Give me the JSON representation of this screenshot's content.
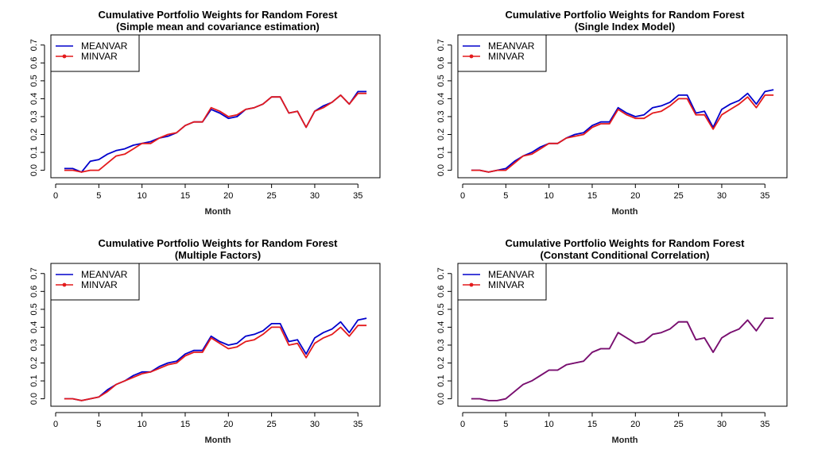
{
  "chart_data": [
    {
      "type": "line",
      "title": "Cumulative Portfolio Weights for Random Forest",
      "subtitle": "(Simple mean and covariance estimation)",
      "xlabel": "Month",
      "ylabel": "",
      "xlim": [
        0,
        37
      ],
      "ylim": [
        0,
        0.7
      ],
      "xticks": [
        0,
        5,
        10,
        15,
        20,
        25,
        30,
        35
      ],
      "yticks": [
        0.0,
        0.1,
        0.2,
        0.3,
        0.4,
        0.5,
        0.6,
        0.7
      ],
      "legend_position": "top-left",
      "x": [
        1,
        2,
        3,
        4,
        5,
        6,
        7,
        8,
        9,
        10,
        11,
        12,
        13,
        14,
        15,
        16,
        17,
        18,
        19,
        20,
        21,
        22,
        23,
        24,
        25,
        26,
        27,
        28,
        29,
        30,
        31,
        32,
        33,
        34,
        35,
        36
      ],
      "series": [
        {
          "name": "MEANVAR",
          "color": "#0000CC",
          "values": [
            0.01,
            0.01,
            -0.01,
            0.05,
            0.06,
            0.09,
            0.11,
            0.12,
            0.14,
            0.15,
            0.16,
            0.18,
            0.19,
            0.21,
            0.25,
            0.27,
            0.27,
            0.34,
            0.32,
            0.29,
            0.3,
            0.34,
            0.35,
            0.37,
            0.41,
            0.41,
            0.32,
            0.33,
            0.24,
            0.33,
            0.36,
            0.38,
            0.42,
            0.37,
            0.44,
            0.44
          ]
        },
        {
          "name": "MINVAR",
          "color": "#E41A1C",
          "values": [
            0.0,
            0.0,
            -0.01,
            0.0,
            0.0,
            0.04,
            0.08,
            0.09,
            0.12,
            0.15,
            0.15,
            0.18,
            0.2,
            0.21,
            0.25,
            0.27,
            0.27,
            0.35,
            0.33,
            0.3,
            0.31,
            0.34,
            0.35,
            0.37,
            0.41,
            0.41,
            0.32,
            0.33,
            0.24,
            0.33,
            0.35,
            0.38,
            0.42,
            0.37,
            0.43,
            0.43
          ]
        }
      ]
    },
    {
      "type": "line",
      "title": "Cumulative Portfolio Weights for Random Forest",
      "subtitle": "(Single Index Model)",
      "xlabel": "Month",
      "ylabel": "",
      "xlim": [
        0,
        37
      ],
      "ylim": [
        0,
        0.7
      ],
      "xticks": [
        0,
        5,
        10,
        15,
        20,
        25,
        30,
        35
      ],
      "yticks": [
        0.0,
        0.1,
        0.2,
        0.3,
        0.4,
        0.5,
        0.6,
        0.7
      ],
      "legend_position": "top-left",
      "x": [
        1,
        2,
        3,
        4,
        5,
        6,
        7,
        8,
        9,
        10,
        11,
        12,
        13,
        14,
        15,
        16,
        17,
        18,
        19,
        20,
        21,
        22,
        23,
        24,
        25,
        26,
        27,
        28,
        29,
        30,
        31,
        32,
        33,
        34,
        35,
        36
      ],
      "series": [
        {
          "name": "MEANVAR",
          "color": "#0000CC",
          "values": [
            0.0,
            0.0,
            -0.01,
            0.0,
            0.01,
            0.05,
            0.08,
            0.1,
            0.13,
            0.15,
            0.15,
            0.18,
            0.2,
            0.21,
            0.25,
            0.27,
            0.27,
            0.35,
            0.32,
            0.3,
            0.31,
            0.35,
            0.36,
            0.38,
            0.42,
            0.42,
            0.32,
            0.33,
            0.24,
            0.34,
            0.37,
            0.39,
            0.43,
            0.37,
            0.44,
            0.45
          ]
        },
        {
          "name": "MINVAR",
          "color": "#E41A1C",
          "values": [
            0.0,
            0.0,
            -0.01,
            0.0,
            0.0,
            0.04,
            0.08,
            0.09,
            0.12,
            0.15,
            0.15,
            0.18,
            0.19,
            0.2,
            0.24,
            0.26,
            0.26,
            0.34,
            0.31,
            0.29,
            0.29,
            0.32,
            0.33,
            0.36,
            0.4,
            0.4,
            0.31,
            0.31,
            0.23,
            0.31,
            0.34,
            0.37,
            0.41,
            0.35,
            0.42,
            0.42
          ]
        }
      ]
    },
    {
      "type": "line",
      "title": "Cumulative Portfolio Weights for Random Forest",
      "subtitle": "(Multiple Factors)",
      "xlabel": "Month",
      "ylabel": "",
      "xlim": [
        0,
        37
      ],
      "ylim": [
        0,
        0.7
      ],
      "xticks": [
        0,
        5,
        10,
        15,
        20,
        25,
        30,
        35
      ],
      "yticks": [
        0.0,
        0.1,
        0.2,
        0.3,
        0.4,
        0.5,
        0.6,
        0.7
      ],
      "legend_position": "top-left",
      "x": [
        1,
        2,
        3,
        4,
        5,
        6,
        7,
        8,
        9,
        10,
        11,
        12,
        13,
        14,
        15,
        16,
        17,
        18,
        19,
        20,
        21,
        22,
        23,
        24,
        25,
        26,
        27,
        28,
        29,
        30,
        31,
        32,
        33,
        34,
        35,
        36
      ],
      "series": [
        {
          "name": "MEANVAR",
          "color": "#0000CC",
          "values": [
            0.0,
            0.0,
            -0.01,
            0.0,
            0.01,
            0.05,
            0.08,
            0.1,
            0.13,
            0.15,
            0.15,
            0.18,
            0.2,
            0.21,
            0.25,
            0.27,
            0.27,
            0.35,
            0.32,
            0.3,
            0.31,
            0.35,
            0.36,
            0.38,
            0.42,
            0.42,
            0.32,
            0.33,
            0.25,
            0.34,
            0.37,
            0.39,
            0.43,
            0.37,
            0.44,
            0.45
          ]
        },
        {
          "name": "MINVAR",
          "color": "#E41A1C",
          "values": [
            0.0,
            0.0,
            -0.01,
            0.0,
            0.01,
            0.04,
            0.08,
            0.1,
            0.12,
            0.14,
            0.15,
            0.17,
            0.19,
            0.2,
            0.24,
            0.26,
            0.26,
            0.34,
            0.31,
            0.28,
            0.29,
            0.32,
            0.33,
            0.36,
            0.4,
            0.4,
            0.3,
            0.31,
            0.23,
            0.31,
            0.34,
            0.36,
            0.4,
            0.35,
            0.41,
            0.41
          ]
        }
      ]
    },
    {
      "type": "line",
      "title": "Cumulative Portfolio Weights for Random Forest",
      "subtitle": "(Constant Conditional Correlation)",
      "xlabel": "Month",
      "ylabel": "",
      "xlim": [
        0,
        37
      ],
      "ylim": [
        0,
        0.7
      ],
      "xticks": [
        0,
        5,
        10,
        15,
        20,
        25,
        30,
        35
      ],
      "yticks": [
        0.0,
        0.1,
        0.2,
        0.3,
        0.4,
        0.5,
        0.6,
        0.7
      ],
      "legend_position": "top-left",
      "x": [
        1,
        2,
        3,
        4,
        5,
        6,
        7,
        8,
        9,
        10,
        11,
        12,
        13,
        14,
        15,
        16,
        17,
        18,
        19,
        20,
        21,
        22,
        23,
        24,
        25,
        26,
        27,
        28,
        29,
        30,
        31,
        32,
        33,
        34,
        35,
        36
      ],
      "series": [
        {
          "name": "MEANVAR",
          "color": "#0000CC",
          "values": [
            0.0,
            0.0,
            -0.01,
            -0.01,
            0.0,
            0.04,
            0.08,
            0.1,
            0.13,
            0.16,
            0.16,
            0.19,
            0.2,
            0.21,
            0.26,
            0.28,
            0.28,
            0.37,
            0.34,
            0.31,
            0.32,
            0.36,
            0.37,
            0.39,
            0.43,
            0.43,
            0.33,
            0.34,
            0.26,
            0.34,
            0.37,
            0.39,
            0.44,
            0.38,
            0.45,
            0.45
          ]
        },
        {
          "name": "MINVAR",
          "color": "#E41A1C",
          "values": [
            0.0,
            0.0,
            -0.01,
            -0.01,
            0.0,
            0.04,
            0.08,
            0.1,
            0.13,
            0.16,
            0.16,
            0.19,
            0.2,
            0.21,
            0.26,
            0.28,
            0.28,
            0.37,
            0.34,
            0.31,
            0.32,
            0.36,
            0.37,
            0.39,
            0.43,
            0.43,
            0.33,
            0.34,
            0.26,
            0.34,
            0.37,
            0.39,
            0.44,
            0.38,
            0.45,
            0.45
          ]
        }
      ]
    }
  ]
}
